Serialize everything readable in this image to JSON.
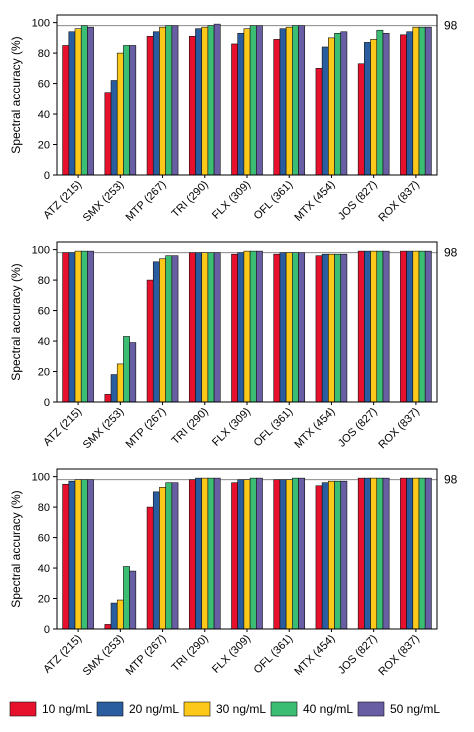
{
  "legend": {
    "items": [
      {
        "label": "10 ng/mL",
        "color": "#e8112d"
      },
      {
        "label": "20 ng/mL",
        "color": "#2a5d9f"
      },
      {
        "label": "30 ng/mL",
        "color": "#fcc91a"
      },
      {
        "label": "40 ng/mL",
        "color": "#3bbd74"
      },
      {
        "label": "50 ng/mL",
        "color": "#675ea4"
      }
    ]
  },
  "chart_data": [
    {
      "type": "bar",
      "ylabel": "Spectral accuracy (%)",
      "ylim": [
        0,
        105
      ],
      "yticks": [
        0,
        20,
        40,
        60,
        80,
        100
      ],
      "reference_line": {
        "value": 98,
        "label": "98"
      },
      "categories": [
        "ATZ (215)",
        "SMX (253)",
        "MTP (267)",
        "TRI (290)",
        "FLX (309)",
        "OFL (361)",
        "MTX (454)",
        "JOS (827)",
        "ROX (837)"
      ],
      "series": [
        {
          "name": "10 ng/mL",
          "values": [
            85,
            54,
            91,
            91,
            86,
            89,
            70,
            73,
            92
          ]
        },
        {
          "name": "20 ng/mL",
          "values": [
            94,
            62,
            94,
            96,
            93,
            96,
            84,
            87,
            94
          ]
        },
        {
          "name": "30 ng/mL",
          "values": [
            96,
            80,
            97,
            97,
            96,
            97,
            90,
            89,
            97
          ]
        },
        {
          "name": "40 ng/mL",
          "values": [
            98,
            85,
            98,
            98,
            98,
            98,
            93,
            95,
            97
          ]
        },
        {
          "name": "50 ng/mL",
          "values": [
            97,
            85,
            98,
            99,
            98,
            98,
            94,
            93,
            97
          ]
        }
      ]
    },
    {
      "type": "bar",
      "ylabel": "Spectral accuracy (%)",
      "ylim": [
        0,
        105
      ],
      "yticks": [
        0,
        20,
        40,
        60,
        80,
        100
      ],
      "reference_line": {
        "value": 98,
        "label": "98"
      },
      "categories": [
        "ATZ (215)",
        "SMX (253)",
        "MTP (267)",
        "TRI (290)",
        "FLX (309)",
        "OFL (361)",
        "MTX (454)",
        "JOS (827)",
        "ROX (837)"
      ],
      "series": [
        {
          "name": "10 ng/mL",
          "values": [
            98,
            5,
            80,
            98,
            97,
            97,
            96,
            99,
            99
          ]
        },
        {
          "name": "20 ng/mL",
          "values": [
            98,
            18,
            92,
            98,
            98,
            98,
            97,
            99,
            99
          ]
        },
        {
          "name": "30 ng/mL",
          "values": [
            99,
            25,
            94,
            98,
            99,
            98,
            97,
            99,
            99
          ]
        },
        {
          "name": "40 ng/mL",
          "values": [
            99,
            43,
            96,
            98,
            99,
            98,
            97,
            99,
            99
          ]
        },
        {
          "name": "50 ng/mL",
          "values": [
            99,
            39,
            96,
            98,
            99,
            98,
            97,
            99,
            99
          ]
        }
      ]
    },
    {
      "type": "bar",
      "ylabel": "Spectral accuracy (%)",
      "ylim": [
        0,
        105
      ],
      "yticks": [
        0,
        20,
        40,
        60,
        80,
        100
      ],
      "reference_line": {
        "value": 98,
        "label": "98"
      },
      "categories": [
        "ATZ (215)",
        "SMX (253)",
        "MTP (267)",
        "TRI (290)",
        "FLX (309)",
        "OFL (361)",
        "MTX (454)",
        "JOS (827)",
        "ROX (837)"
      ],
      "series": [
        {
          "name": "10 ng/mL",
          "values": [
            95,
            3,
            80,
            98,
            96,
            98,
            94,
            99,
            99
          ]
        },
        {
          "name": "20 ng/mL",
          "values": [
            97,
            17,
            90,
            99,
            98,
            98,
            96,
            99,
            99
          ]
        },
        {
          "name": "30 ng/mL",
          "values": [
            98,
            19,
            93,
            99,
            98,
            98,
            97,
            99,
            99
          ]
        },
        {
          "name": "40 ng/mL",
          "values": [
            98,
            41,
            96,
            99,
            99,
            99,
            97,
            99,
            99
          ]
        },
        {
          "name": "50 ng/mL",
          "values": [
            98,
            38,
            96,
            99,
            99,
            99,
            97,
            99,
            99
          ]
        }
      ]
    }
  ]
}
